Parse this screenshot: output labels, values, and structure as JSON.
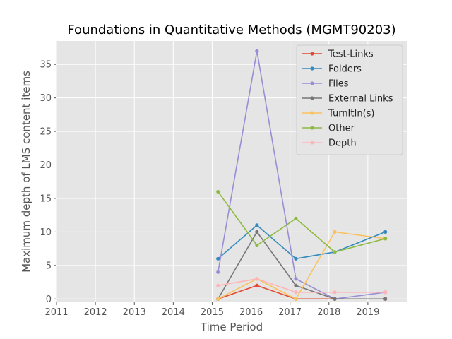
{
  "chart_data": {
    "type": "line",
    "title": "Foundations in Quantitative Methods (MGMT90203)",
    "xlabel": "Time Period",
    "ylabel": "Maximum depth of LMS content items",
    "xlim": [
      2011,
      2020
    ],
    "ylim": [
      -0.5,
      38.5
    ],
    "xticks": [
      2011,
      2012,
      2013,
      2014,
      2015,
      2016,
      2017,
      2018,
      2019
    ],
    "yticks": [
      0,
      5,
      10,
      15,
      20,
      25,
      30,
      35
    ],
    "grid": true,
    "legend_position": "top-right",
    "x": [
      2015.15,
      2016.15,
      2017.15,
      2018.15,
      2019.45
    ],
    "series": [
      {
        "name": "Test-Links",
        "color": "#E24A33",
        "values": [
          0,
          2,
          0,
          0,
          0
        ]
      },
      {
        "name": "Folders",
        "color": "#348ABD",
        "values": [
          6,
          11,
          6,
          7,
          10
        ]
      },
      {
        "name": "Files",
        "color": "#988ED5",
        "values": [
          4,
          37,
          3,
          0,
          1
        ]
      },
      {
        "name": "External Links",
        "color": "#777777",
        "values": [
          0,
          10,
          2,
          0,
          0
        ]
      },
      {
        "name": "TurnItIn(s)",
        "color": "#FBC15E",
        "values": [
          0,
          3,
          0,
          10,
          9
        ]
      },
      {
        "name": "Other",
        "color": "#8EBA42",
        "values": [
          16,
          8,
          12,
          7,
          9
        ]
      },
      {
        "name": "Depth",
        "color": "#FFB5B8",
        "values": [
          2,
          3,
          1,
          1,
          1
        ]
      }
    ]
  }
}
